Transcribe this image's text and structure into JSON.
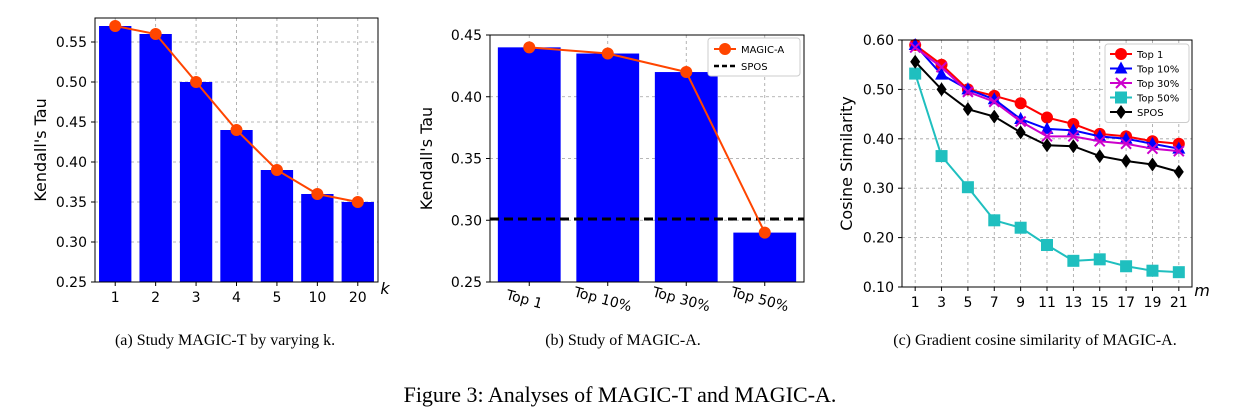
{
  "figure_caption": "Figure 3: Analyses of MAGIC-T and MAGIC-A.",
  "chart_data": [
    {
      "id": "a",
      "type": "bar",
      "caption": "(a) Study MAGIC-T by varying k.",
      "categories": [
        "1",
        "2",
        "3",
        "4",
        "5",
        "10",
        "20"
      ],
      "values": [
        0.57,
        0.56,
        0.5,
        0.44,
        0.39,
        0.36,
        0.35
      ],
      "line_values": [
        0.57,
        0.56,
        0.5,
        0.44,
        0.39,
        0.36,
        0.35
      ],
      "ylabel": "Kendall's Tau",
      "xlabel": "k",
      "ylim": [
        0.25,
        0.58
      ],
      "yticks": [
        "0.25",
        "0.30",
        "0.35",
        "0.40",
        "0.45",
        "0.50",
        "0.55"
      ],
      "bar_color": "#0000ff",
      "line_color": "#ff4500",
      "grid": true
    },
    {
      "id": "b",
      "type": "bar",
      "caption": "(b) Study of MAGIC-A.",
      "categories": [
        "Top 1",
        "Top 10%",
        "Top 30%",
        "Top 50%"
      ],
      "values": [
        0.44,
        0.435,
        0.42,
        0.29
      ],
      "series": [
        {
          "name": "MAGIC-A",
          "values": [
            0.44,
            0.435,
            0.42,
            0.29
          ],
          "color": "#ff4500"
        }
      ],
      "baseline": {
        "name": "SPOS",
        "value": 0.301,
        "color": "#000000"
      },
      "ylabel": "Kendall's Tau",
      "ylim": [
        0.25,
        0.45
      ],
      "yticks": [
        "0.25",
        "0.30",
        "0.35",
        "0.40",
        "0.45"
      ],
      "bar_color": "#0000ff",
      "legend": "top-right",
      "grid": true
    },
    {
      "id": "c",
      "type": "line",
      "caption": "(c) Gradient cosine similarity of MAGIC-A.",
      "x": [
        1,
        3,
        5,
        7,
        9,
        11,
        13,
        15,
        17,
        19,
        21
      ],
      "xticks": [
        "1",
        "3",
        "5",
        "7",
        "9",
        "11",
        "13",
        "15",
        "17",
        "19",
        "21"
      ],
      "xlabel": "m",
      "ylabel": "Cosine Similarity",
      "ylim": [
        0.1,
        0.6
      ],
      "yticks": [
        "0.10",
        "0.20",
        "0.30",
        "0.40",
        "0.50",
        "0.60"
      ],
      "legend": "top-right",
      "grid": true,
      "series": [
        {
          "name": "Top 1",
          "color": "#ff0000",
          "marker": "circle",
          "values": [
            0.59,
            0.55,
            0.5,
            0.487,
            0.472,
            0.443,
            0.43,
            0.41,
            0.405,
            0.395,
            0.39
          ]
        },
        {
          "name": "Top 10%",
          "color": "#0000ff",
          "marker": "triangle",
          "values": [
            0.59,
            0.53,
            0.5,
            0.48,
            0.44,
            0.42,
            0.417,
            0.405,
            0.4,
            0.39,
            0.38
          ]
        },
        {
          "name": "Top 30%",
          "color": "#cc00cc",
          "marker": "x",
          "values": [
            0.585,
            0.545,
            0.495,
            0.475,
            0.435,
            0.405,
            0.405,
            0.395,
            0.39,
            0.38,
            0.375
          ]
        },
        {
          "name": "Top 50%",
          "color": "#1fbfbf",
          "marker": "square",
          "values": [
            0.532,
            0.365,
            0.302,
            0.235,
            0.22,
            0.185,
            0.153,
            0.156,
            0.142,
            0.133,
            0.13
          ]
        },
        {
          "name": "SPOS",
          "color": "#000000",
          "marker": "diamond",
          "values": [
            0.556,
            0.5,
            0.46,
            0.445,
            0.413,
            0.387,
            0.385,
            0.365,
            0.355,
            0.348,
            0.333
          ]
        }
      ]
    }
  ]
}
